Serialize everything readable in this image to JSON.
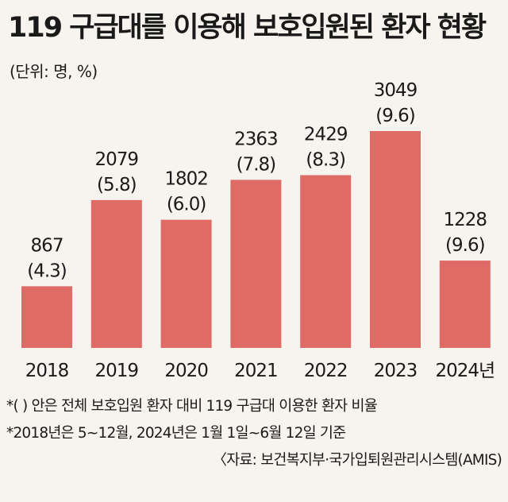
{
  "title": "119 구급대를 이용해 보호입원된 환자 현황",
  "unit_label": "(단위: 명, %)",
  "colors": {
    "bar": "#de6b66",
    "text": "#1a1a1a",
    "background": "#f7f4ef"
  },
  "chart_data": {
    "type": "bar",
    "categories": [
      "2018",
      "2019",
      "2020",
      "2021",
      "2022",
      "2023",
      "2024년"
    ],
    "series": [
      {
        "values": [
          867,
          2079,
          1802,
          2363,
          2429,
          3049,
          1228
        ]
      }
    ],
    "data_labels": [
      "867",
      "2079",
      "1802",
      "2363",
      "2429",
      "3049",
      "1228"
    ],
    "percent_labels": [
      "(4.3)",
      "(5.8)",
      "(6.0)",
      "(7.8)",
      "(8.3)",
      "(9.6)",
      "(9.6)"
    ],
    "ylim": [
      0,
      3300
    ],
    "grid": false,
    "title": "119 구급대를 이용해 보호입원된 환자 현황",
    "xlabel": "",
    "ylabel": ""
  },
  "notes": [
    "*(  ) 안은 전체 보호입원 환자 대비 119 구급대 이용한 환자 비율",
    "*2018년은 5~12월, 2024년은 1월 1일~6월 12일 기준"
  ],
  "source": "〈자료: 보건복지부·국가입퇴원관리시스템(AMIS)"
}
